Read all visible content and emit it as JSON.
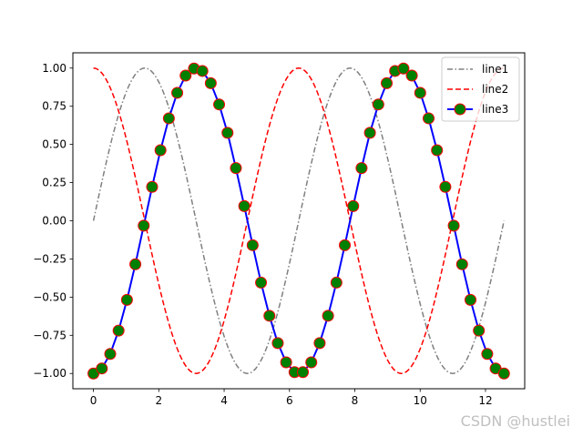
{
  "chart_data": {
    "type": "line",
    "x_range": [
      0,
      12.566
    ],
    "xlim": [
      -0.63,
      13.2
    ],
    "ylim": [
      -1.1,
      1.1
    ],
    "x_ticks": [
      0,
      2,
      4,
      6,
      8,
      10,
      12
    ],
    "x_tick_labels": [
      "0",
      "2",
      "4",
      "6",
      "8",
      "10",
      "12"
    ],
    "y_ticks": [
      -1.0,
      -0.75,
      -0.5,
      -0.25,
      0.0,
      0.25,
      0.5,
      0.75,
      1.0
    ],
    "y_tick_labels": [
      "−1.00",
      "−0.75",
      "−0.50",
      "−0.25",
      "0.00",
      "0.25",
      "0.50",
      "0.75",
      "1.00"
    ],
    "grid": false,
    "legend_position": "top-right",
    "series": [
      {
        "name": "line1",
        "function": "sin(x)",
        "color": "#808080",
        "line_style": "dashdot",
        "marker": "none"
      },
      {
        "name": "line2",
        "function": "cos(x)",
        "color": "#ff0000",
        "line_style": "dashed",
        "marker": "none"
      },
      {
        "name": "line3",
        "function": "-cos(x)",
        "color": "#0000ff",
        "line_style": "solid",
        "marker": "circle",
        "marker_face_color": "#008000",
        "marker_edge_color": "#ff0000",
        "x": [
          0.0,
          0.2565,
          0.5129,
          0.7694,
          1.0258,
          1.2823,
          1.5387,
          1.7952,
          2.0516,
          2.3081,
          2.5645,
          2.821,
          3.0775,
          3.3339,
          3.5904,
          3.8468,
          4.1033,
          4.3597,
          4.6162,
          4.8726,
          5.1291,
          5.3855,
          5.642,
          5.8985,
          6.1549,
          6.4114,
          6.6678,
          6.9243,
          7.1807,
          7.4372,
          7.6936,
          7.9501,
          8.2065,
          8.463,
          8.7195,
          8.9759,
          9.2324,
          9.4888,
          9.7453,
          10.0017,
          10.2582,
          10.5146,
          10.7711,
          11.0275,
          11.284,
          11.5405,
          11.7969,
          12.0534,
          12.3098,
          12.5663
        ],
        "y": [
          -1.0,
          -0.967,
          -0.872,
          -0.719,
          -0.518,
          -0.285,
          -0.032,
          0.222,
          0.462,
          0.671,
          0.838,
          0.951,
          0.997,
          0.981,
          0.901,
          0.762,
          0.576,
          0.345,
          0.096,
          -0.16,
          -0.405,
          -0.622,
          -0.801,
          -0.927,
          -0.991,
          -0.991,
          -0.927,
          -0.801,
          -0.622,
          -0.405,
          -0.16,
          0.096,
          0.345,
          0.576,
          0.762,
          0.901,
          0.981,
          0.997,
          0.951,
          0.838,
          0.671,
          0.462,
          0.222,
          -0.032,
          -0.285,
          -0.518,
          -0.719,
          -0.872,
          -0.967,
          -1.0
        ]
      }
    ]
  },
  "watermark": "CSDN @hustlei"
}
